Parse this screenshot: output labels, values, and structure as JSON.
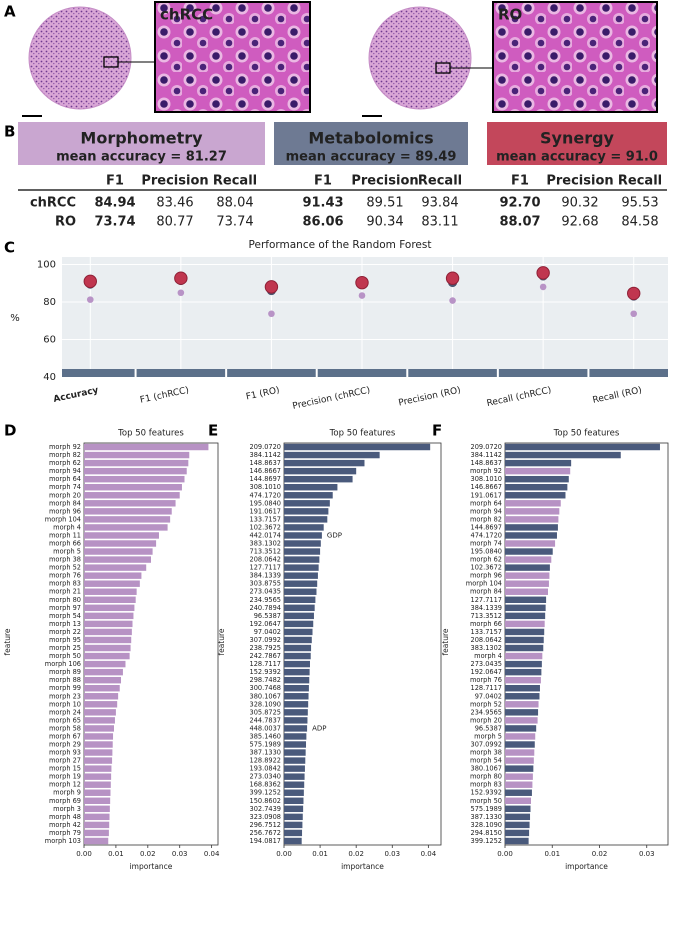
{
  "panel_labels": [
    "A",
    "B",
    "C",
    "D",
    "E",
    "F"
  ],
  "images": [
    {
      "label": "chRCC"
    },
    {
      "label": "RO"
    }
  ],
  "table": {
    "groups": [
      {
        "title": "Morphometry",
        "subtitle": "mean accuracy = 81.27",
        "color": "#c9a6d0",
        "title_color": "#222222"
      },
      {
        "title": "Metabolomics",
        "subtitle": "mean accuracy = 89.49",
        "color": "#6e7a93",
        "title_color": "#ffffff"
      },
      {
        "title": "Synergy",
        "subtitle": "mean accuracy = 91.0",
        "color": "#c3475b",
        "title_color": "#ffffff"
      }
    ],
    "columns": [
      "F1",
      "Precision",
      "Recall"
    ],
    "rows": [
      {
        "label": "chRCC",
        "cells": [
          [
            "84.94",
            "83.46",
            "88.04"
          ],
          [
            "91.43",
            "89.51",
            "93.84"
          ],
          [
            "92.70",
            "90.32",
            "95.53"
          ]
        ]
      },
      {
        "label": "RO",
        "cells": [
          [
            "73.74",
            "80.77",
            "73.74"
          ],
          [
            "86.06",
            "90.34",
            "83.11"
          ],
          [
            "88.07",
            "92.68",
            "84.58"
          ]
        ]
      }
    ]
  },
  "chart_data": [
    {
      "type": "dot",
      "title": "Performance of the Random Forest",
      "ylabel": "%",
      "categories": [
        "Accuracy",
        "F1 (chRCC)",
        "F1 (RO)",
        "Precision (chRCC)",
        "Precision (RO)",
        "Recall (chRCC)",
        "Recall (RO)"
      ],
      "ylim": [
        40,
        104
      ],
      "yticks": [
        40,
        60,
        80,
        100
      ],
      "grid": true,
      "series": [
        {
          "color": "#b893c6",
          "values": [
            81.27,
            84.94,
            73.74,
            83.46,
            80.77,
            88.04,
            73.74
          ]
        },
        {
          "color": "#4b5670",
          "values": [
            89.49,
            91.43,
            86.06,
            89.51,
            90.34,
            93.84,
            83.11
          ]
        },
        {
          "color": "#c0364f",
          "values": [
            91.0,
            92.7,
            88.07,
            90.32,
            92.68,
            95.53,
            84.58
          ]
        }
      ]
    },
    {
      "type": "barh",
      "title": "Top 50 features",
      "xlabel": "importance",
      "ylabel": "feature",
      "color": "#b792c4",
      "xlim": [
        0,
        0.042
      ],
      "xticks": [
        {
          "value": 0,
          "label": "0.00"
        },
        0.01,
        0.02,
        0.03,
        0.04
      ],
      "categories": [
        "morph 92",
        "morph 82",
        "morph 62",
        "morph 94",
        "morph 64",
        "morph 74",
        "morph 20",
        "morph 84",
        "morph 96",
        "morph 104",
        "morph 4",
        "morph 11",
        "morph 66",
        "morph 5",
        "morph 38",
        "morph 52",
        "morph 76",
        "morph 83",
        "morph 21",
        "morph 80",
        "morph 97",
        "morph 54",
        "morph 13",
        "morph 22",
        "morph 95",
        "morph 25",
        "morph 50",
        "morph 106",
        "morph 89",
        "morph 88",
        "morph 99",
        "morph 23",
        "morph 10",
        "morph 24",
        "morph 65",
        "morph 58",
        "morph 67",
        "morph 29",
        "morph 93",
        "morph 27",
        "morph 15",
        "morph 19",
        "morph 12",
        "morph 9",
        "morph 69",
        "morph 3",
        "morph 48",
        "morph 42",
        "morph 79",
        "morph 103"
      ],
      "values": [
        0.039,
        0.033,
        0.0327,
        0.0322,
        0.0315,
        0.0307,
        0.03,
        0.0287,
        0.0275,
        0.027,
        0.0262,
        0.0235,
        0.0226,
        0.0215,
        0.021,
        0.0195,
        0.018,
        0.0175,
        0.0165,
        0.0162,
        0.0158,
        0.0155,
        0.0152,
        0.015,
        0.0148,
        0.0146,
        0.0143,
        0.013,
        0.0122,
        0.0116,
        0.0112,
        0.0107,
        0.0104,
        0.01,
        0.0097,
        0.0094,
        0.0091,
        0.009,
        0.0089,
        0.0088,
        0.0086,
        0.0085,
        0.0084,
        0.0083,
        0.0082,
        0.0081,
        0.008,
        0.0079,
        0.0078,
        0.0076
      ]
    },
    {
      "type": "barh",
      "title": "Top 50 features",
      "xlabel": "importance",
      "ylabel": "feature",
      "color": "#4a5a7c",
      "xlim": [
        0,
        0.0435
      ],
      "xticks": [
        {
          "value": 0,
          "label": "0.00"
        },
        0.01,
        0.02,
        0.03,
        0.04
      ],
      "categories": [
        "209.0720",
        "384.1142",
        "148.8637",
        "146.8667",
        "144.8697",
        "308.1010",
        "474.1720",
        "195.0840",
        "191.0617",
        "133.7157",
        "102.3672",
        "442.0174",
        "383.1302",
        "713.3512",
        "208.0642",
        "127.7117",
        "384.1339",
        "303.8755",
        "273.0435",
        "234.9565",
        "240.7894",
        "96.5387",
        "192.0647",
        "97.0402",
        "307.0992",
        "238.7925",
        "242.7867",
        "128.7117",
        "152.9392",
        "298.7482",
        "300.7468",
        "380.1067",
        "328.1090",
        "305.8725",
        "244.7837",
        "448.0037",
        "385.1460",
        "575.1989",
        "387.1330",
        "128.8922",
        "193.0842",
        "273.0340",
        "168.8362",
        "399.1252",
        "150.8602",
        "302.7439",
        "323.0908",
        "296.7512",
        "256.7672",
        "194.0817"
      ],
      "values": [
        0.0405,
        0.0265,
        0.0223,
        0.02,
        0.019,
        0.0148,
        0.0135,
        0.0127,
        0.0123,
        0.012,
        0.011,
        0.0105,
        0.0102,
        0.01,
        0.0098,
        0.0096,
        0.0094,
        0.0092,
        0.009,
        0.0087,
        0.0085,
        0.0083,
        0.0081,
        0.0079,
        0.0077,
        0.0075,
        0.0074,
        0.0072,
        0.0071,
        0.007,
        0.0069,
        0.0068,
        0.0067,
        0.0066,
        0.0065,
        0.0064,
        0.0062,
        0.0061,
        0.006,
        0.0059,
        0.0058,
        0.0057,
        0.0056,
        0.0055,
        0.0054,
        0.0053,
        0.0052,
        0.0051,
        0.005,
        0.0049
      ],
      "annotations": [
        {
          "text": "GDP",
          "category": "442.0174"
        },
        {
          "text": "ADP",
          "category": "448.0037"
        }
      ]
    },
    {
      "type": "barh",
      "title": "Top 50 features",
      "xlabel": "importance",
      "ylabel": "feature",
      "xlim": [
        0,
        0.0345
      ],
      "xticks": [
        {
          "value": 0,
          "label": "0.00"
        },
        0.01,
        0.02,
        0.03
      ],
      "categories": [
        "209.0720",
        "384.1142",
        "148.8637",
        "morph 92",
        "308.1010",
        "146.8667",
        "191.0617",
        "morph 64",
        "morph 94",
        "morph 82",
        "144.8697",
        "474.1720",
        "morph 74",
        "195.0840",
        "morph 62",
        "102.3672",
        "morph 96",
        "morph 104",
        "morph 84",
        "127.7117",
        "384.1339",
        "713.3512",
        "morph 66",
        "133.7157",
        "208.0642",
        "383.1302",
        "morph 4",
        "273.0435",
        "192.0647",
        "morph 76",
        "128.7117",
        "97.0402",
        "morph 52",
        "234.9565",
        "morph 20",
        "96.5387",
        "morph 5",
        "307.0992",
        "morph 38",
        "morph 54",
        "380.1067",
        "morph 80",
        "morph 83",
        "152.9392",
        "morph 50",
        "575.1989",
        "387.1330",
        "328.1090",
        "294.8150",
        "399.1252"
      ],
      "values": [
        0.0328,
        0.0245,
        0.014,
        0.0138,
        0.0135,
        0.0132,
        0.0128,
        0.0118,
        0.0115,
        0.0113,
        0.0112,
        0.011,
        0.0106,
        0.0101,
        0.0098,
        0.0095,
        0.0094,
        0.0093,
        0.0091,
        0.0087,
        0.0086,
        0.0085,
        0.0084,
        0.0083,
        0.0082,
        0.0081,
        0.0079,
        0.0078,
        0.0077,
        0.0076,
        0.0074,
        0.0073,
        0.0071,
        0.007,
        0.0069,
        0.0066,
        0.0064,
        0.0063,
        0.0062,
        0.0061,
        0.006,
        0.0059,
        0.0058,
        0.0057,
        0.0055,
        0.0054,
        0.0053,
        0.0052,
        0.0051,
        0.005
      ],
      "colors": [
        "#4a5a7c",
        "#4a5a7c",
        "#4a5a7c",
        "#b792c4",
        "#4a5a7c",
        "#4a5a7c",
        "#4a5a7c",
        "#b792c4",
        "#b792c4",
        "#b792c4",
        "#4a5a7c",
        "#4a5a7c",
        "#b792c4",
        "#4a5a7c",
        "#b792c4",
        "#4a5a7c",
        "#b792c4",
        "#b792c4",
        "#b792c4",
        "#4a5a7c",
        "#4a5a7c",
        "#4a5a7c",
        "#b792c4",
        "#4a5a7c",
        "#4a5a7c",
        "#4a5a7c",
        "#b792c4",
        "#4a5a7c",
        "#4a5a7c",
        "#b792c4",
        "#4a5a7c",
        "#4a5a7c",
        "#b792c4",
        "#4a5a7c",
        "#b792c4",
        "#4a5a7c",
        "#b792c4",
        "#4a5a7c",
        "#b792c4",
        "#b792c4",
        "#4a5a7c",
        "#b792c4",
        "#b792c4",
        "#4a5a7c",
        "#b792c4",
        "#4a5a7c",
        "#4a5a7c",
        "#4a5a7c",
        "#4a5a7c",
        "#4a5a7c"
      ]
    }
  ]
}
